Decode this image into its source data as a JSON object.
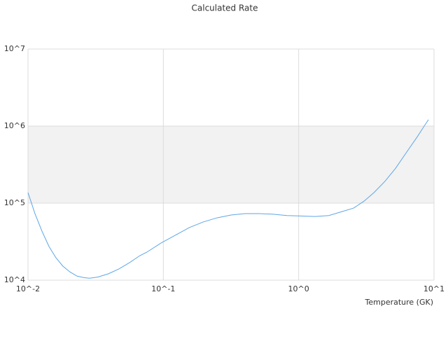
{
  "chart_data": {
    "type": "line",
    "title": "Calculated Rate",
    "x_label": "Temperature (GK)",
    "x_log": true,
    "y_log": true,
    "grid": true,
    "grid_bands": true,
    "xlim": [
      0.01,
      10
    ],
    "ylim": [
      10000,
      10000000
    ],
    "xticks": [
      {
        "value": 0.01,
        "label": "10^-2"
      },
      {
        "value": 0.1,
        "label": "10^-1"
      },
      {
        "value": 1,
        "label": "10^0"
      },
      {
        "value": 10,
        "label": "10^1"
      }
    ],
    "yticks": [
      {
        "value": 10000,
        "label": "10^4"
      },
      {
        "value": 100000,
        "label": "10^5"
      },
      {
        "value": 1000000,
        "label": "10^6"
      },
      {
        "value": 10000000,
        "label": "10^7"
      }
    ],
    "series": [
      {
        "color": "#5ea6e6",
        "x": [
          0.01,
          0.01126,
          0.0127,
          0.0143,
          0.0161,
          0.0181,
          0.0204,
          0.023,
          0.0259,
          0.0285,
          0.0329,
          0.0393,
          0.047,
          0.0563,
          0.0671,
          0.0756,
          0.096,
          0.122,
          0.155,
          0.197,
          0.25,
          0.316,
          0.4,
          0.51,
          0.64,
          0.82,
          1.04,
          1.32,
          1.67,
          2.11,
          2.54,
          3.04,
          3.6,
          4.33,
          5.2,
          6.23,
          7.5,
          8.4,
          9.1
        ],
        "values": [
          137000,
          73000,
          43000,
          27300,
          19500,
          15200,
          12800,
          11300,
          10800,
          10600,
          11000,
          12100,
          14000,
          16900,
          20800,
          23100,
          30300,
          38100,
          48000,
          56900,
          64500,
          70000,
          73000,
          73000,
          72000,
          69000,
          68000,
          67000,
          69000,
          78000,
          86000,
          106000,
          137000,
          191000,
          283000,
          450000,
          720000,
          980000,
          1210000
        ]
      }
    ]
  }
}
